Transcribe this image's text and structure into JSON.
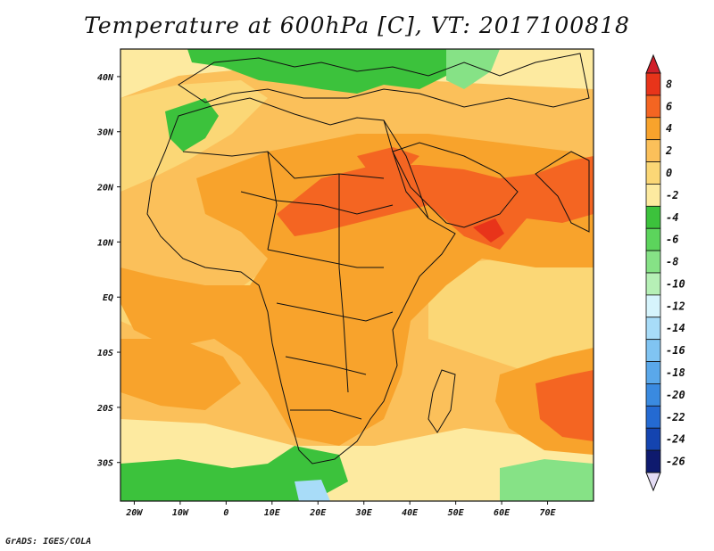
{
  "title": "Temperature at 600hPa [C], VT: 2017100818",
  "footer": "GrADS: IGES/COLA",
  "map": {
    "lon_range": [
      -23,
      80
    ],
    "lat_range": [
      -37,
      45
    ],
    "lon_ticks": [
      {
        "value": -20,
        "label": "20W"
      },
      {
        "value": -10,
        "label": "10W"
      },
      {
        "value": 0,
        "label": "0"
      },
      {
        "value": 10,
        "label": "10E"
      },
      {
        "value": 20,
        "label": "20E"
      },
      {
        "value": 30,
        "label": "30E"
      },
      {
        "value": 40,
        "label": "40E"
      },
      {
        "value": 50,
        "label": "50E"
      },
      {
        "value": 60,
        "label": "60E"
      },
      {
        "value": 70,
        "label": "70E"
      }
    ],
    "lat_ticks": [
      {
        "value": 40,
        "label": "40N"
      },
      {
        "value": 30,
        "label": "30N"
      },
      {
        "value": 20,
        "label": "20N"
      },
      {
        "value": 10,
        "label": "10N"
      },
      {
        "value": 0,
        "label": "EQ"
      },
      {
        "value": -10,
        "label": "10S"
      },
      {
        "value": -20,
        "label": "20S"
      },
      {
        "value": -30,
        "label": "30S"
      }
    ]
  },
  "colorbar": {
    "labels": [
      "8",
      "6",
      "4",
      "2",
      "0",
      "-2",
      "-4",
      "-6",
      "-8",
      "-10",
      "-12",
      "-14",
      "-16",
      "-18",
      "-20",
      "-22",
      "-24",
      "-26"
    ],
    "colors": [
      "#e8341a",
      "#f46522",
      "#f8a32c",
      "#fbc05a",
      "#fbd776",
      "#fdeaa0",
      "#3cc23c",
      "#5cd45c",
      "#86e286",
      "#b6f0b6",
      "#d6f4fc",
      "#a8dcf8",
      "#80c4f2",
      "#5aa8ea",
      "#3a8ae0",
      "#246ad2",
      "#1444b0",
      "#0e1a6e"
    ],
    "top_color": "#d0202a",
    "bottom_color": "#e4dcf4"
  },
  "palette": {
    "very_hot": "#e8341a",
    "hot": "#f46522",
    "warm": "#f8a32c",
    "mild": "#fbc05a",
    "cool_yellow": "#fbd776",
    "pale": "#fdeaa0",
    "green": "#3cc23c",
    "light_green": "#86e286",
    "light_blue": "#a8dcf8"
  }
}
